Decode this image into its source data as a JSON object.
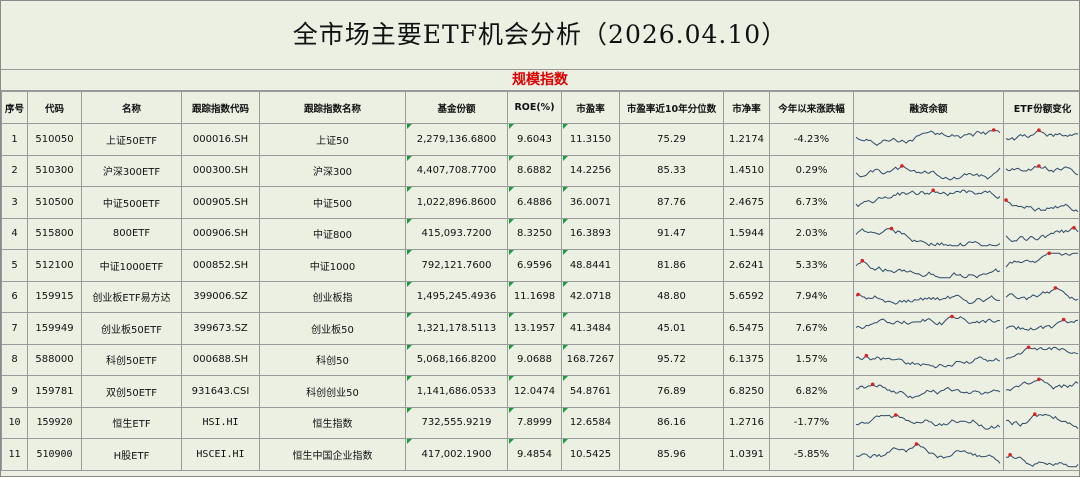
{
  "title": "全市场主要ETF机会分析（2026.04.10）",
  "section_label": "规模指数",
  "columns": [
    "序号",
    "代码",
    "名称",
    "跟踪指数代码",
    "跟踪指数名称",
    "基金份额",
    "ROE(%)",
    "市盈率",
    "市盈率近10年分位数",
    "市净率",
    "今年以来涨跌幅",
    "融资余额",
    "ETF份额变化"
  ],
  "rows": [
    {
      "no": "1",
      "code": "510050",
      "name": "上证50ETF",
      "index_code": "000016.SH",
      "index_name": "上证50",
      "shares": "2,279,136.6800",
      "roe": "9.6043",
      "pe": "11.3150",
      "pe_pct": "75.29",
      "pb": "1.2174",
      "ytd": "-4.23%"
    },
    {
      "no": "2",
      "code": "510300",
      "name": "沪深300ETF",
      "index_code": "000300.SH",
      "index_name": "沪深300",
      "shares": "4,407,708.7700",
      "roe": "8.6882",
      "pe": "14.2256",
      "pe_pct": "85.33",
      "pb": "1.4510",
      "ytd": "0.29%"
    },
    {
      "no": "3",
      "code": "510500",
      "name": "中证500ETF",
      "index_code": "000905.SH",
      "index_name": "中证500",
      "shares": "1,022,896.8600",
      "roe": "6.4886",
      "pe": "36.0071",
      "pe_pct": "87.76",
      "pb": "2.4675",
      "ytd": "6.73%"
    },
    {
      "no": "4",
      "code": "515800",
      "name": "800ETF",
      "index_code": "000906.SH",
      "index_name": "中证800",
      "shares": "415,093.7200",
      "roe": "8.3250",
      "pe": "16.3893",
      "pe_pct": "91.47",
      "pb": "1.5944",
      "ytd": "2.03%"
    },
    {
      "no": "5",
      "code": "512100",
      "name": "中证1000ETF",
      "index_code": "000852.SH",
      "index_name": "中证1000",
      "shares": "792,121.7600",
      "roe": "6.9596",
      "pe": "48.8441",
      "pe_pct": "81.86",
      "pb": "2.6241",
      "ytd": "5.33%"
    },
    {
      "no": "6",
      "code": "159915",
      "name": "创业板ETF易方达",
      "index_code": "399006.SZ",
      "index_name": "创业板指",
      "shares": "1,495,245.4936",
      "roe": "11.1698",
      "pe": "42.0718",
      "pe_pct": "48.80",
      "pb": "5.6592",
      "ytd": "7.94%"
    },
    {
      "no": "7",
      "code": "159949",
      "name": "创业板50ETF",
      "index_code": "399673.SZ",
      "index_name": "创业板50",
      "shares": "1,321,178.5113",
      "roe": "13.1957",
      "pe": "41.3484",
      "pe_pct": "45.01",
      "pb": "6.5475",
      "ytd": "7.67%"
    },
    {
      "no": "8",
      "code": "588000",
      "name": "科创50ETF",
      "index_code": "000688.SH",
      "index_name": "科创50",
      "shares": "5,068,166.8200",
      "roe": "9.0688",
      "pe": "168.7267",
      "pe_pct": "95.72",
      "pb": "6.1375",
      "ytd": "1.57%"
    },
    {
      "no": "9",
      "code": "159781",
      "name": "双创50ETF",
      "index_code": "931643.CSI",
      "index_name": "科创创业50",
      "shares": "1,141,686.0533",
      "roe": "12.0474",
      "pe": "54.8761",
      "pe_pct": "76.89",
      "pb": "6.8250",
      "ytd": "6.82%"
    },
    {
      "no": "10",
      "code": "159920",
      "name": "恒生ETF",
      "index_code": "HSI.HI",
      "index_name": "恒生指数",
      "shares": "732,555.9219",
      "roe": "7.8999",
      "pe": "12.6584",
      "pe_pct": "86.16",
      "pb": "1.2716",
      "ytd": "-1.77%"
    },
    {
      "no": "11",
      "code": "510900",
      "name": "H股ETF",
      "index_code": "HSCEI.HI",
      "index_name": "恒生中国企业指数",
      "shares": "417,002.1900",
      "roe": "9.4854",
      "pe": "10.5425",
      "pe_pct": "85.96",
      "pb": "1.0391",
      "ytd": "-5.85%"
    }
  ],
  "colors": {
    "line": "#2f4a66",
    "peak": "#e02020",
    "marker": "#1b9c3a",
    "section": "#e00000"
  }
}
